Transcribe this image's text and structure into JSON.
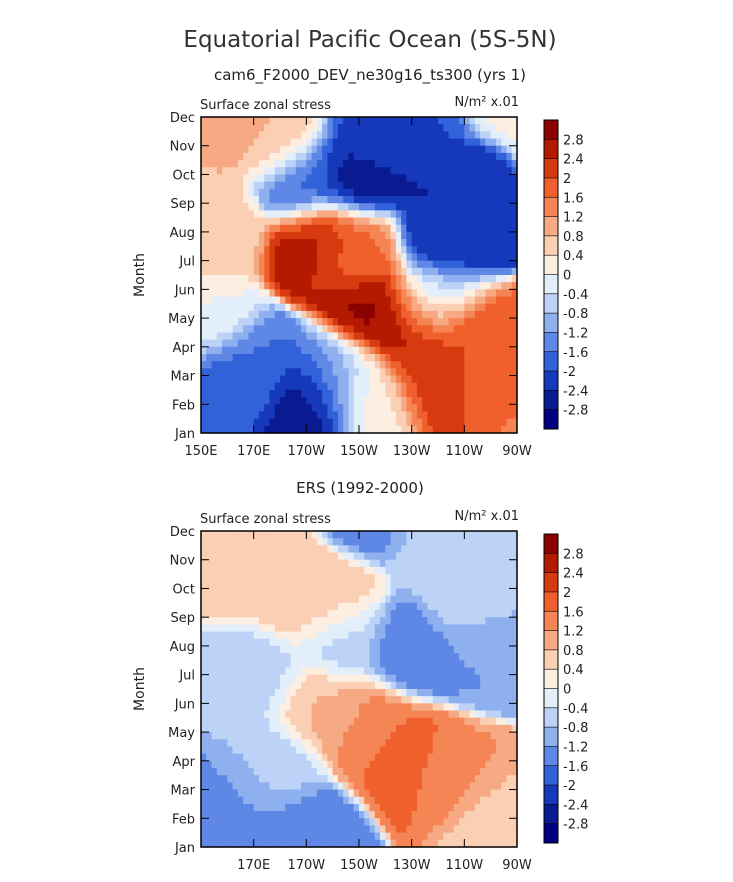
{
  "figure": {
    "title": "Equatorial Pacific Ocean (5S-5N)",
    "subtitle": "cam6_F2000_DEV_ne30g16_ts300 (yrs 1)"
  },
  "colorbar": {
    "labels": [
      "2.8",
      "2.4",
      "2",
      "1.6",
      "1.2",
      "0.8",
      "0.4",
      "0",
      "-0.4",
      "-0.8",
      "-1.2",
      "-1.6",
      "-2",
      "-2.4",
      "-2.8"
    ],
    "colors": [
      "#8b0000",
      "#b31a00",
      "#d63a0e",
      "#f0602c",
      "#f58555",
      "#f7a984",
      "#fbcfb4",
      "#fdeee2",
      "#e3eefb",
      "#bcd2f6",
      "#8eb0ef",
      "#5f88e6",
      "#3262d9",
      "#1638bb",
      "#0a1a90",
      "#000080"
    ]
  },
  "chart_data": [
    {
      "type": "heatmap",
      "title": "",
      "subtitle": "",
      "left_label": "Surface zonal stress",
      "units": "N/m² x.01",
      "xlabel": "",
      "ylabel": "Month",
      "x_ticks": [
        "150E",
        "170E",
        "170W",
        "150W",
        "130W",
        "110W",
        "90W"
      ],
      "y_ticks": [
        "Jan",
        "Feb",
        "Mar",
        "Apr",
        "May",
        "Jun",
        "Jul",
        "Aug",
        "Sep",
        "Oct",
        "Nov",
        "Dec"
      ],
      "x_range": [
        "150E",
        "90W"
      ],
      "z_range": [
        -2.8,
        2.8
      ],
      "features": [
        {
          "lon": 160,
          "month": 11,
          "value": 0.9
        },
        {
          "lon": 180,
          "month": 10.2,
          "value": 0.8
        },
        {
          "lon": 190,
          "month": 8.8,
          "value": -1.8
        },
        {
          "lon": 210,
          "month": 9.0,
          "value": -2.8
        },
        {
          "lon": 215,
          "month": 10.0,
          "value": -2.0
        },
        {
          "lon": 243,
          "month": 7.0,
          "value": -2.4
        },
        {
          "lon": 238,
          "month": 4.5,
          "value": -0.8
        },
        {
          "lon": 155,
          "month": 7.0,
          "value": 0.6
        },
        {
          "lon": 195,
          "month": 6.6,
          "value": 2.6
        },
        {
          "lon": 208,
          "month": 6.4,
          "value": 1.6
        },
        {
          "lon": 215,
          "month": 4.2,
          "value": 2.9
        },
        {
          "lon": 230,
          "month": 3.7,
          "value": 2.8
        },
        {
          "lon": 248,
          "month": 3.3,
          "value": 2.2
        },
        {
          "lon": 262,
          "month": 2.6,
          "value": 1.6
        },
        {
          "lon": 237,
          "month": 2.4,
          "value": 2.2
        },
        {
          "lon": 170,
          "month": 2.3,
          "value": -1.6
        },
        {
          "lon": 160,
          "month": 1.9,
          "value": -2.0
        },
        {
          "lon": 192,
          "month": 1.2,
          "value": -2.8
        },
        {
          "lon": 200,
          "month": 2.0,
          "value": -1.2
        },
        {
          "lon": 212,
          "month": 1.5,
          "value": 0.3
        },
        {
          "lon": 153,
          "month": 3.8,
          "value": 0.0
        }
      ]
    },
    {
      "type": "heatmap",
      "title": "ERS (1992-2000)",
      "subtitle": "",
      "left_label": "Surface zonal stress",
      "units": "N/m² x.01",
      "xlabel": "",
      "ylabel": "Month",
      "x_ticks": [
        "170E",
        "170W",
        "150W",
        "130W",
        "110W",
        "90W"
      ],
      "y_ticks": [
        "Jan",
        "Feb",
        "Mar",
        "Apr",
        "May",
        "Jun",
        "Jul",
        "Aug",
        "Sep",
        "Oct",
        "Nov",
        "Dec"
      ],
      "x_range": [
        "150E",
        "90W"
      ],
      "z_range": [
        -2.8,
        2.8
      ],
      "features": [
        {
          "lon": 165,
          "month": 10,
          "value": 0.6
        },
        {
          "lon": 185,
          "month": 9,
          "value": 0.8
        },
        {
          "lon": 200,
          "month": 8.4,
          "value": 0.7
        },
        {
          "lon": 215,
          "month": 11.8,
          "value": -1.4
        },
        {
          "lon": 240,
          "month": 10.5,
          "value": -0.6
        },
        {
          "lon": 250,
          "month": 8.5,
          "value": -0.5
        },
        {
          "lon": 230,
          "month": 6.9,
          "value": -1.6
        },
        {
          "lon": 255,
          "month": 6.8,
          "value": -1.2
        },
        {
          "lon": 205,
          "month": 7.2,
          "value": -0.7
        },
        {
          "lon": 170,
          "month": 6.0,
          "value": -0.5
        },
        {
          "lon": 212,
          "month": 4.2,
          "value": 1.3
        },
        {
          "lon": 220,
          "month": 3.6,
          "value": 1.7
        },
        {
          "lon": 232,
          "month": 2.9,
          "value": 1.8
        },
        {
          "lon": 245,
          "month": 2.6,
          "value": 1.2
        },
        {
          "lon": 198,
          "month": 4.8,
          "value": 0.8
        },
        {
          "lon": 165,
          "month": 1.5,
          "value": -1.3
        },
        {
          "lon": 190,
          "month": 0.5,
          "value": -1.6
        },
        {
          "lon": 178,
          "month": 2.6,
          "value": -0.6
        },
        {
          "lon": 265,
          "month": 0.5,
          "value": 0.5
        }
      ]
    }
  ]
}
